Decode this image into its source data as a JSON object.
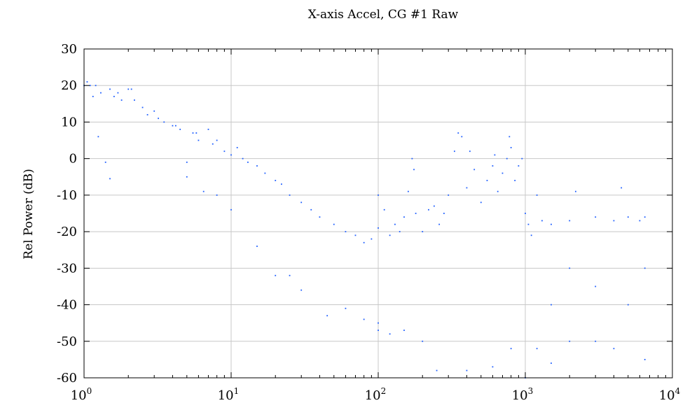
{
  "chart_data": {
    "type": "scatter",
    "title": "X-axis Accel, CG #1 Raw",
    "xlabel": "",
    "ylabel": "Rel Power (dB)",
    "x_scale": "log",
    "xlim": [
      1,
      10000
    ],
    "ylim": [
      -60,
      30
    ],
    "grid": true,
    "marker_color": "#1f5fff",
    "x_ticks": [
      {
        "value": 1,
        "base": "10",
        "exp": "0"
      },
      {
        "value": 10,
        "base": "10",
        "exp": "1"
      },
      {
        "value": 100,
        "base": "10",
        "exp": "2"
      },
      {
        "value": 1000,
        "base": "10",
        "exp": "3"
      },
      {
        "value": 10000,
        "base": "10",
        "exp": "4"
      }
    ],
    "y_ticks": [
      {
        "value": 30,
        "label": "30"
      },
      {
        "value": 20,
        "label": "20"
      },
      {
        "value": 10,
        "label": "10"
      },
      {
        "value": 0,
        "label": "0"
      },
      {
        "value": -10,
        "label": "-10"
      },
      {
        "value": -20,
        "label": "-20"
      },
      {
        "value": -30,
        "label": "-30"
      },
      {
        "value": -40,
        "label": "-40"
      },
      {
        "value": -50,
        "label": "-50"
      },
      {
        "value": -60,
        "label": "-60"
      }
    ],
    "series": [
      {
        "points": [
          [
            1.0,
            20
          ],
          [
            1.05,
            21
          ],
          [
            1.1,
            20
          ],
          [
            1.15,
            17
          ],
          [
            1.2,
            20
          ],
          [
            1.25,
            6
          ],
          [
            1.3,
            18
          ],
          [
            1.4,
            -1
          ],
          [
            1.5,
            19
          ],
          [
            1.5,
            -5.5
          ],
          [
            1.6,
            17
          ],
          [
            1.7,
            18
          ],
          [
            1.8,
            16
          ],
          [
            2.0,
            19
          ],
          [
            2.1,
            19
          ],
          [
            2.2,
            16
          ],
          [
            2.5,
            14
          ],
          [
            2.7,
            12
          ],
          [
            3.0,
            13
          ],
          [
            3.2,
            11
          ],
          [
            3.5,
            10
          ],
          [
            4.0,
            9
          ],
          [
            4.2,
            9
          ],
          [
            4.5,
            8
          ],
          [
            5.0,
            -1
          ],
          [
            5.5,
            7
          ],
          [
            5.8,
            7
          ],
          [
            6.0,
            5
          ],
          [
            6.5,
            -9
          ],
          [
            7.0,
            8
          ],
          [
            7.5,
            4
          ],
          [
            8.0,
            5
          ],
          [
            9.0,
            2
          ],
          [
            10.0,
            1
          ],
          [
            10.0,
            -14
          ],
          [
            11.0,
            3
          ],
          [
            12.0,
            0
          ],
          [
            13.0,
            -1
          ],
          [
            15.0,
            -2
          ],
          [
            17.0,
            -4
          ],
          [
            20.0,
            -6
          ],
          [
            20.0,
            -32
          ],
          [
            22.0,
            -7
          ],
          [
            25.0,
            -10
          ],
          [
            30.0,
            -12
          ],
          [
            35.0,
            -14
          ],
          [
            40.0,
            -16
          ],
          [
            50.0,
            -18
          ],
          [
            60.0,
            -20
          ],
          [
            70.0,
            -21
          ],
          [
            80.0,
            -23
          ],
          [
            90.0,
            -22
          ],
          [
            100.0,
            -10
          ],
          [
            100.0,
            -19
          ],
          [
            100.0,
            -45
          ],
          [
            110.0,
            -14
          ],
          [
            120.0,
            -21
          ],
          [
            130.0,
            -18
          ],
          [
            140.0,
            -20
          ],
          [
            150.0,
            -16
          ],
          [
            160.0,
            -9
          ],
          [
            170.0,
            0
          ],
          [
            175.0,
            -3
          ],
          [
            180.0,
            -15
          ],
          [
            200.0,
            -20
          ],
          [
            220.0,
            -14
          ],
          [
            240.0,
            -13
          ],
          [
            260.0,
            -18
          ],
          [
            280.0,
            -15
          ],
          [
            300.0,
            -10
          ],
          [
            330.0,
            2
          ],
          [
            350.0,
            7
          ],
          [
            370.0,
            6
          ],
          [
            400.0,
            -8
          ],
          [
            420.0,
            2
          ],
          [
            450.0,
            -3
          ],
          [
            500.0,
            -12
          ],
          [
            550.0,
            -6
          ],
          [
            600.0,
            -2
          ],
          [
            620.0,
            1
          ],
          [
            650.0,
            -9
          ],
          [
            700.0,
            -4
          ],
          [
            750.0,
            0
          ],
          [
            780.0,
            6
          ],
          [
            800.0,
            3
          ],
          [
            850.0,
            -6
          ],
          [
            900.0,
            -2
          ],
          [
            950.0,
            0
          ],
          [
            1000.0,
            -15
          ],
          [
            1050.0,
            -18
          ],
          [
            1100.0,
            -21
          ],
          [
            1200.0,
            -10
          ],
          [
            1300.0,
            -17
          ],
          [
            1500.0,
            -18
          ],
          [
            2000.0,
            -17
          ],
          [
            2200.0,
            -9
          ],
          [
            3000.0,
            -16
          ],
          [
            4000.0,
            -17
          ],
          [
            4500.0,
            -8
          ],
          [
            5000.0,
            -16
          ],
          [
            6000.0,
            -17
          ],
          [
            6500.0,
            -16
          ],
          [
            6500.0,
            -55
          ],
          [
            4000.0,
            -52
          ],
          [
            3000.0,
            -50
          ],
          [
            2000.0,
            -50
          ],
          [
            1500.0,
            -56
          ],
          [
            1200.0,
            -52
          ],
          [
            1000.0,
            -60
          ],
          [
            800.0,
            -52
          ],
          [
            600.0,
            -57
          ],
          [
            400.0,
            -58
          ],
          [
            250.0,
            -58
          ],
          [
            200.0,
            -50
          ],
          [
            150.0,
            -47
          ],
          [
            120.0,
            -48
          ],
          [
            100.0,
            -47
          ],
          [
            80.0,
            -44
          ],
          [
            60.0,
            -41
          ],
          [
            45.0,
            -43
          ],
          [
            30.0,
            -36
          ],
          [
            25.0,
            -32
          ],
          [
            15.0,
            -24
          ],
          [
            8.0,
            -10
          ],
          [
            5.0,
            -5
          ],
          [
            2000.0,
            -30
          ],
          [
            3000.0,
            -35
          ],
          [
            5000.0,
            -40
          ],
          [
            6500.0,
            -30
          ],
          [
            1500.0,
            -40
          ]
        ]
      }
    ]
  }
}
